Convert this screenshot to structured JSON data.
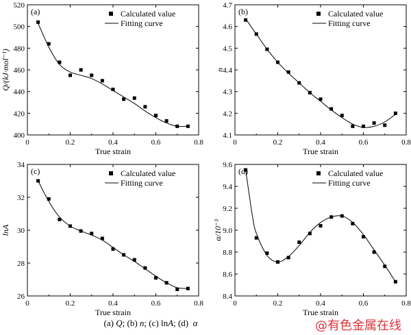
{
  "caption": {
    "a_tag": "(a)",
    "a_sym": "Q",
    "sep1": "; ",
    "b_tag": "(b)",
    "b_sym": "n",
    "sep2": "; ",
    "c_tag": "(c)",
    "c_sym": "ln",
    "c_sym2": "A",
    "sep3": "; ",
    "d_tag": "(d)",
    "d_sym": "α"
  },
  "watermark": "@有色金属在线",
  "chart_data": [
    {
      "type": "scatter",
      "panel_label": "(a)",
      "xlabel": "True strain",
      "ylabel": "Q/(kJ·mol⁻¹)",
      "xlim": [
        0,
        0.8
      ],
      "ylim": [
        400,
        520
      ],
      "xticks": [
        "0",
        "0.2",
        "0.4",
        "0.6",
        "0.8"
      ],
      "xtick_values": [
        0,
        0.2,
        0.4,
        0.6,
        0.8
      ],
      "yticks": [
        "400",
        "420",
        "440",
        "460",
        "480",
        "500",
        "520"
      ],
      "ytick_values": [
        400,
        420,
        440,
        460,
        480,
        500,
        520
      ],
      "legend_position": "top-right",
      "series": [
        {
          "name": "Calculated value",
          "x": [
            0.05,
            0.1,
            0.15,
            0.2,
            0.25,
            0.3,
            0.35,
            0.4,
            0.45,
            0.5,
            0.55,
            0.6,
            0.65,
            0.7,
            0.75
          ],
          "y": [
            504,
            484,
            467,
            455,
            460,
            455,
            450,
            442,
            433,
            434,
            426,
            418,
            413,
            408,
            408
          ]
        },
        {
          "name": "Fitting curve",
          "x": [
            0.05,
            0.1,
            0.15,
            0.2,
            0.25,
            0.3,
            0.35,
            0.4,
            0.45,
            0.5,
            0.55,
            0.6,
            0.65,
            0.7,
            0.75
          ],
          "y": [
            503,
            481,
            465,
            458,
            455,
            452,
            447,
            441,
            435,
            429,
            422,
            416,
            411,
            408,
            408
          ]
        }
      ]
    },
    {
      "type": "scatter",
      "panel_label": "(b)",
      "xlabel": "True strain",
      "ylabel": "n",
      "xlim": [
        0,
        0.8
      ],
      "ylim": [
        4.1,
        4.7
      ],
      "xticks": [
        "0",
        "0.2",
        "0.4",
        "0.6",
        "0.8"
      ],
      "xtick_values": [
        0,
        0.2,
        0.4,
        0.6,
        0.8
      ],
      "yticks": [
        "4.1",
        "4.2",
        "4.3",
        "4.4",
        "4.5",
        "4.6",
        "4.7"
      ],
      "ytick_values": [
        4.1,
        4.2,
        4.3,
        4.4,
        4.5,
        4.6,
        4.7
      ],
      "legend_position": "top-right",
      "series": [
        {
          "name": "Calculated value",
          "x": [
            0.05,
            0.1,
            0.15,
            0.2,
            0.25,
            0.3,
            0.35,
            0.4,
            0.45,
            0.5,
            0.55,
            0.6,
            0.65,
            0.7,
            0.75
          ],
          "y": [
            4.63,
            4.565,
            4.495,
            4.435,
            4.39,
            4.34,
            4.295,
            4.265,
            4.22,
            4.19,
            4.14,
            4.14,
            4.155,
            4.145,
            4.2
          ]
        },
        {
          "name": "Fitting curve",
          "x": [
            0.05,
            0.1,
            0.15,
            0.2,
            0.25,
            0.3,
            0.35,
            0.4,
            0.45,
            0.5,
            0.55,
            0.6,
            0.65,
            0.7,
            0.75
          ],
          "y": [
            4.635,
            4.565,
            4.495,
            4.435,
            4.385,
            4.34,
            4.295,
            4.255,
            4.215,
            4.18,
            4.15,
            4.135,
            4.14,
            4.16,
            4.195
          ]
        }
      ]
    },
    {
      "type": "scatter",
      "panel_label": "(c)",
      "xlabel": "True strain",
      "ylabel": "lnA",
      "xlim": [
        0,
        0.8
      ],
      "ylim": [
        26,
        34
      ],
      "xticks": [
        "0",
        "0.2",
        "0.4",
        "0.6",
        "0.8"
      ],
      "xtick_values": [
        0,
        0.2,
        0.4,
        0.6,
        0.8
      ],
      "yticks": [
        "26",
        "28",
        "30",
        "32",
        "34"
      ],
      "ytick_values": [
        26,
        28,
        30,
        32,
        34
      ],
      "legend_position": "top-right",
      "series": [
        {
          "name": "Calculated value",
          "x": [
            0.05,
            0.1,
            0.15,
            0.2,
            0.25,
            0.3,
            0.35,
            0.4,
            0.45,
            0.5,
            0.55,
            0.6,
            0.65,
            0.7,
            0.75
          ],
          "y": [
            33.0,
            31.9,
            30.65,
            30.25,
            29.95,
            29.8,
            29.5,
            28.85,
            28.5,
            28.2,
            27.7,
            27.1,
            26.8,
            26.4,
            26.45
          ]
        },
        {
          "name": "Fitting curve",
          "x": [
            0.05,
            0.1,
            0.15,
            0.2,
            0.25,
            0.3,
            0.35,
            0.4,
            0.45,
            0.5,
            0.55,
            0.6,
            0.65,
            0.7,
            0.75
          ],
          "y": [
            33.0,
            31.75,
            30.8,
            30.25,
            29.95,
            29.7,
            29.4,
            28.95,
            28.5,
            28.1,
            27.65,
            27.2,
            26.8,
            26.5,
            26.45
          ]
        }
      ]
    },
    {
      "type": "scatter",
      "panel_label": "(d)",
      "xlabel": "True strain",
      "ylabel": "α/10⁻³",
      "xlim": [
        0,
        0.8
      ],
      "ylim": [
        8.4,
        9.6
      ],
      "xticks": [
        "0",
        "0.2",
        "0.4",
        "0.6",
        "0.8"
      ],
      "xtick_values": [
        0,
        0.2,
        0.4,
        0.6,
        0.8
      ],
      "yticks": [
        "8.4",
        "8.6",
        "8.8",
        "9.0",
        "9.2",
        "9.4",
        "9.6"
      ],
      "ytick_values": [
        8.4,
        8.6,
        8.8,
        9.0,
        9.2,
        9.4,
        9.6
      ],
      "legend_position": "top-right",
      "series": [
        {
          "name": "Calculated value",
          "x": [
            0.05,
            0.1,
            0.15,
            0.2,
            0.25,
            0.3,
            0.35,
            0.4,
            0.45,
            0.5,
            0.55,
            0.6,
            0.65,
            0.7,
            0.75
          ],
          "y": [
            9.55,
            8.93,
            8.79,
            8.71,
            8.75,
            8.89,
            8.97,
            9.04,
            9.12,
            9.13,
            9.06,
            8.94,
            8.8,
            8.67,
            8.53
          ]
        },
        {
          "name": "Fitting curve",
          "x": [
            0.05,
            0.08,
            0.1,
            0.15,
            0.2,
            0.25,
            0.3,
            0.35,
            0.4,
            0.45,
            0.5,
            0.55,
            0.6,
            0.65,
            0.7,
            0.75
          ],
          "y": [
            9.55,
            9.15,
            8.97,
            8.77,
            8.71,
            8.76,
            8.86,
            8.98,
            9.07,
            9.12,
            9.13,
            9.07,
            8.96,
            8.82,
            8.68,
            8.53
          ]
        }
      ]
    }
  ]
}
